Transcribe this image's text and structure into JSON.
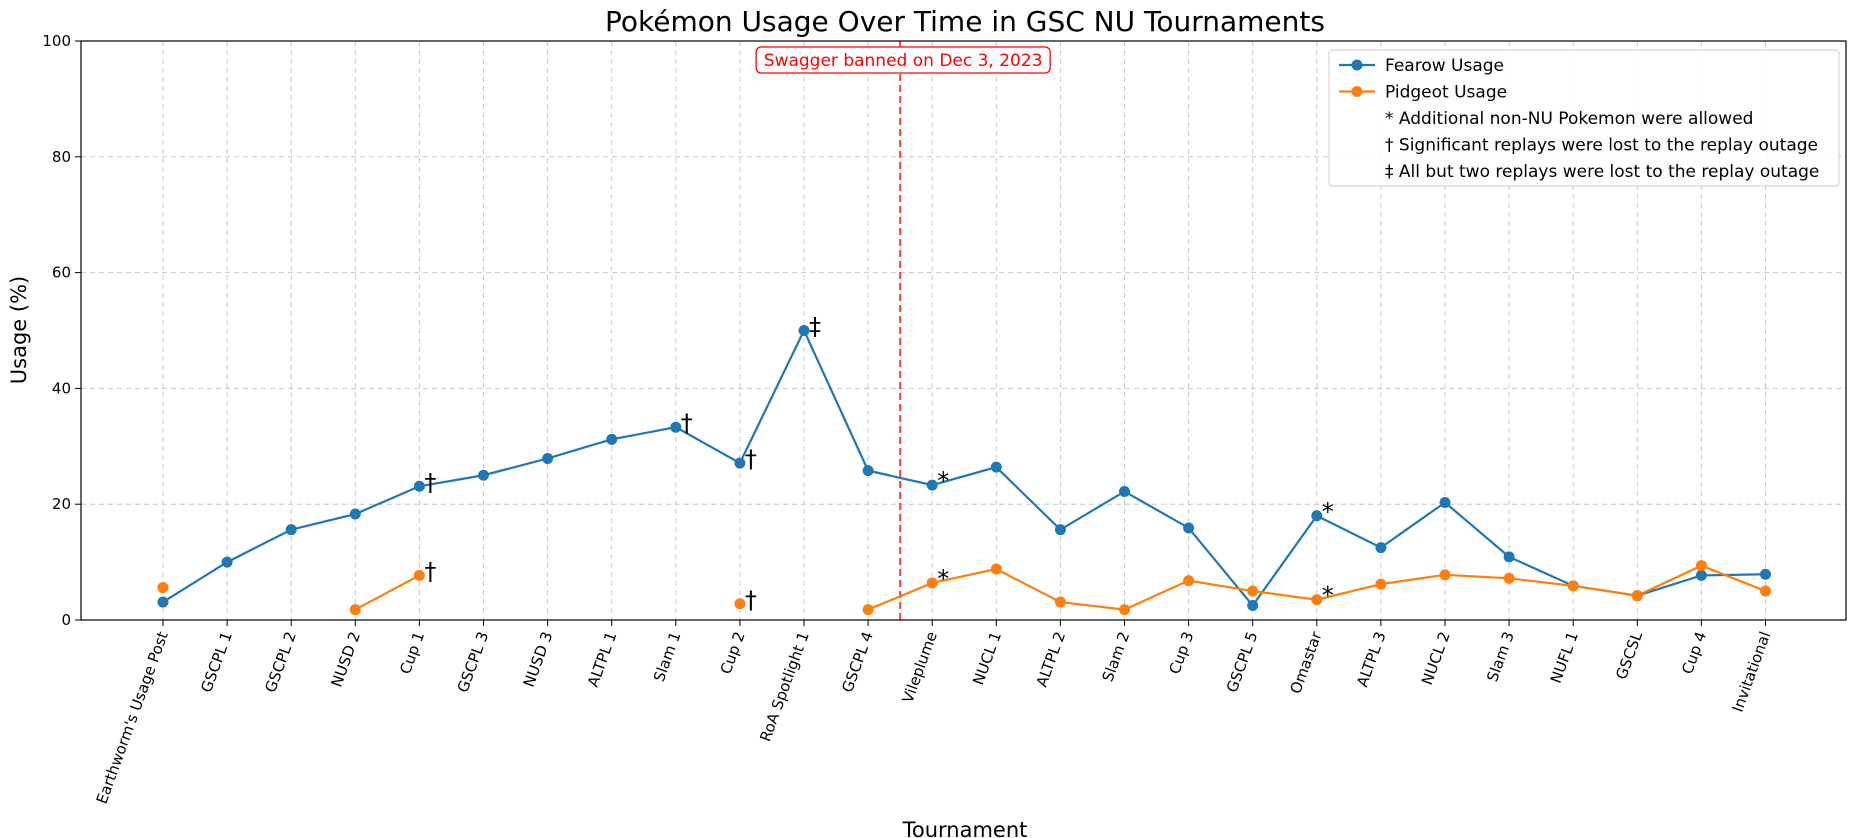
{
  "chart_data": {
    "type": "line",
    "title": "Pokémon Usage Over Time in GSC NU Tournaments",
    "xlabel": "Tournament",
    "ylabel": "Usage (%)",
    "ylim": [
      0,
      100
    ],
    "yticks": [
      "0",
      "20",
      "40",
      "60",
      "80",
      "100"
    ],
    "grid": true,
    "legend_position": "top-right",
    "categories": [
      "Earthworm's Usage Post",
      "GSCPL 1",
      "GSCPL 2",
      "NUSD 2",
      "Cup 1",
      "GSCPL 3",
      "NUSD 3",
      "ALTPL 1",
      "Slam 1",
      "Cup 2",
      "RoA Spotlight 1",
      "GSCPL 4",
      "Vileplume",
      "NUCL 1",
      "ALTPL 2",
      "Slam 2",
      "Cup 3",
      "GSCPL 5",
      "Omastar",
      "ALTPL 3",
      "NUCL 2",
      "Slam 3",
      "NUFL 1",
      "GSCSL",
      "Cup 4",
      "Invitational"
    ],
    "series": [
      {
        "name": "Fearow Usage",
        "color": "#1f77b4",
        "values": [
          3.1,
          10.0,
          15.6,
          18.3,
          23.1,
          25.0,
          27.9,
          31.2,
          33.3,
          27.1,
          50.0,
          25.8,
          23.3,
          26.4,
          15.6,
          22.2,
          15.9,
          2.5,
          18.0,
          12.5,
          20.3,
          10.9,
          5.9,
          4.2,
          7.7,
          7.9
        ]
      },
      {
        "name": "Pidgeot Usage",
        "color": "#ff7f0e",
        "values": [
          5.6,
          null,
          null,
          1.8,
          7.7,
          null,
          null,
          null,
          null,
          2.8,
          null,
          1.8,
          6.4,
          8.8,
          3.1,
          1.8,
          6.8,
          5.0,
          3.5,
          6.2,
          7.8,
          7.2,
          5.9,
          4.2,
          9.4,
          5.0
        ]
      }
    ],
    "point_markers": [
      {
        "series": 0,
        "index": 4,
        "symbol": "†"
      },
      {
        "series": 0,
        "index": 8,
        "symbol": "†"
      },
      {
        "series": 0,
        "index": 9,
        "symbol": "†"
      },
      {
        "series": 0,
        "index": 10,
        "symbol": "‡"
      },
      {
        "series": 0,
        "index": 12,
        "symbol": "*"
      },
      {
        "series": 0,
        "index": 18,
        "symbol": "*"
      },
      {
        "series": 1,
        "index": 4,
        "symbol": "†"
      },
      {
        "series": 1,
        "index": 9,
        "symbol": "†"
      },
      {
        "series": 1,
        "index": 12,
        "symbol": "*"
      },
      {
        "series": 1,
        "index": 18,
        "symbol": "*"
      }
    ],
    "event_line": {
      "between": [
        11,
        12
      ],
      "label": "Swagger banned on Dec 3, 2023",
      "color": "#ff0000"
    },
    "legend_notes": [
      "* Additional non-NU Pokemon were allowed",
      "† Significant replays were lost to the replay outage",
      "‡ All but two replays were lost to the replay outage"
    ]
  }
}
